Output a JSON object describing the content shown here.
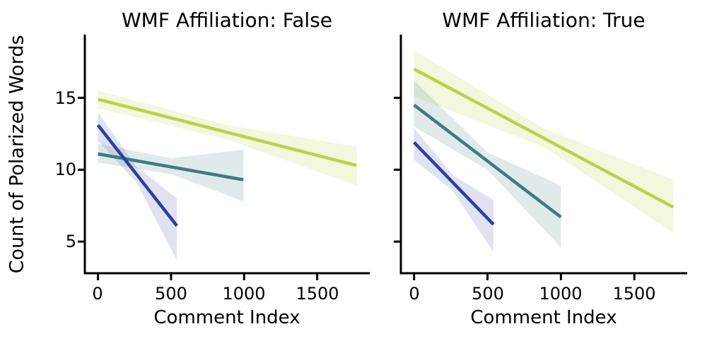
{
  "figure": {
    "ylabel": "Count of Polarized Words",
    "background_color": "#ffffff",
    "text_color": "#000000",
    "axis_color": "#000000"
  },
  "chart_data": [
    {
      "type": "line",
      "title": "WMF Affiliation: False",
      "xlabel": "Comment Index",
      "ylabel": "Count of Polarized Words",
      "xlim": [
        -90,
        1860
      ],
      "ylim": [
        2.8,
        19.4
      ],
      "xticks": [
        0,
        500,
        1000,
        1500
      ],
      "yticks": [
        5,
        10,
        15
      ],
      "grid": false,
      "legend": "none",
      "series": [
        {
          "name": "green",
          "color": "#b9d24a",
          "band_color": "rgba(185,210,74,0.18)",
          "line": {
            "x": [
              0,
              1770
            ],
            "y": [
              14.9,
              10.3
            ]
          },
          "band": {
            "x": [
              0,
              885,
              1770
            ],
            "hi": [
              15.5,
              13.1,
              11.6
            ],
            "lo": [
              14.3,
              12.1,
              8.9
            ]
          }
        },
        {
          "name": "teal",
          "color": "#3e7a84",
          "band_color": "rgba(62,122,132,0.16)",
          "line": {
            "x": [
              0,
              995
            ],
            "y": [
              11.1,
              9.3
            ]
          },
          "band": {
            "x": [
              0,
              500,
              995
            ],
            "hi": [
              11.8,
              10.8,
              11.4
            ],
            "lo": [
              10.5,
              9.7,
              7.8
            ]
          }
        },
        {
          "name": "blue",
          "color": "#2f3e9e",
          "band_color": "rgba(47,62,158,0.15)",
          "line": {
            "x": [
              0,
              540
            ],
            "y": [
              13.1,
              6.1
            ]
          },
          "band": {
            "x": [
              0,
              265,
              540
            ],
            "hi": [
              14.0,
              10.2,
              8.0
            ],
            "lo": [
              12.0,
              9.1,
              3.7
            ]
          }
        }
      ]
    },
    {
      "type": "line",
      "title": "WMF Affiliation: True",
      "xlabel": "Comment Index",
      "ylabel": "Count of Polarized Words",
      "xlim": [
        -90,
        1860
      ],
      "ylim": [
        2.8,
        19.4
      ],
      "xticks": [
        0,
        500,
        1000,
        1500
      ],
      "yticks": [
        5,
        10,
        15
      ],
      "grid": false,
      "legend": "none",
      "series": [
        {
          "name": "green",
          "color": "#b9d24a",
          "band_color": "rgba(185,210,74,0.18)",
          "line": {
            "x": [
              0,
              1765
            ],
            "y": [
              17.0,
              7.4
            ]
          },
          "band": {
            "x": [
              0,
              880,
              1765
            ],
            "hi": [
              18.3,
              12.9,
              9.3
            ],
            "lo": [
              15.1,
              11.6,
              5.6
            ]
          }
        },
        {
          "name": "teal",
          "color": "#3e7a84",
          "band_color": "rgba(62,122,132,0.16)",
          "line": {
            "x": [
              0,
              1000
            ],
            "y": [
              14.5,
              6.7
            ]
          },
          "band": {
            "x": [
              0,
              500,
              1000
            ],
            "hi": [
              16.2,
              11.2,
              8.9
            ],
            "lo": [
              13.0,
              10.0,
              4.6
            ]
          }
        },
        {
          "name": "blue",
          "color": "#2f3e9e",
          "band_color": "rgba(47,62,158,0.15)",
          "line": {
            "x": [
              0,
              540
            ],
            "y": [
              11.9,
              6.2
            ]
          },
          "band": {
            "x": [
              0,
              265,
              540
            ],
            "hi": [
              12.9,
              9.6,
              7.9
            ],
            "lo": [
              10.7,
              8.5,
              4.3
            ]
          }
        }
      ]
    }
  ]
}
